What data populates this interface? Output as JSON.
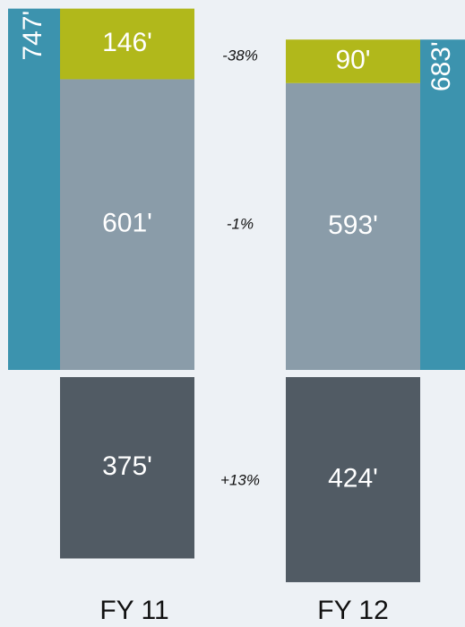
{
  "chart_data": {
    "type": "bar",
    "categories": [
      "FY 11",
      "FY 12"
    ],
    "series": [
      {
        "color": "#515b64",
        "values": [
          375,
          424
        ],
        "value_labels": [
          "375'",
          "424'"
        ]
      },
      {
        "color": "#8a9ca9",
        "values": [
          601,
          593
        ],
        "value_labels": [
          "601'",
          "593'"
        ]
      },
      {
        "color": "#b1b81b",
        "values": [
          146,
          90
        ],
        "value_labels": [
          "146'",
          "90'"
        ]
      },
      {
        "color": "#3c93ae",
        "values": [
          747,
          683
        ],
        "value_labels": [
          "747'",
          "683'"
        ]
      }
    ],
    "annotations": [
      "+13%",
      "-1%",
      "-38%"
    ]
  }
}
